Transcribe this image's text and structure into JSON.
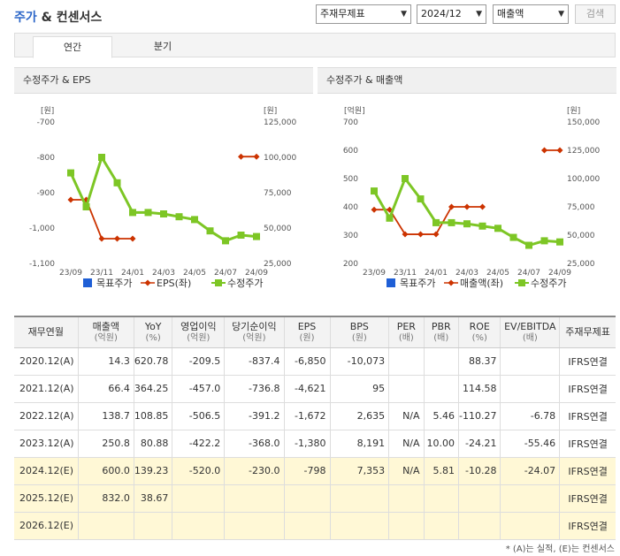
{
  "header": {
    "title_part1": "주가",
    "title_part2": "& 컨센서스",
    "selects": [
      {
        "value": "주재무제표"
      },
      {
        "value": "2024/12"
      },
      {
        "value": "매출액"
      }
    ],
    "search_label": "검색"
  },
  "tabs": [
    {
      "label": "연간",
      "active": true
    },
    {
      "label": "분기",
      "active": false
    }
  ],
  "colors": {
    "eps": "#cc3300",
    "price": "#7dc625",
    "target": "#1f5fd6"
  },
  "chart_data": [
    {
      "type": "line",
      "title": "수정주가 & EPS",
      "left_unit": "[원]",
      "right_unit": "[원]",
      "categories": [
        "23/09",
        "23/10",
        "23/11",
        "23/12",
        "24/01",
        "24/02",
        "24/03",
        "24/04",
        "24/05",
        "24/06",
        "24/07",
        "24/08",
        "24/09"
      ],
      "x_tick_labels": [
        "23/09",
        "23/11",
        "24/01",
        "24/03",
        "24/05",
        "24/07",
        "24/09"
      ],
      "left_ticks": [
        "-700",
        "-800",
        "-900",
        "-1,000",
        "-1,100"
      ],
      "right_ticks": [
        "125,000",
        "100,000",
        "75,000",
        "50,000",
        "25,000"
      ],
      "ylim_left": [
        -1100,
        -700
      ],
      "ylim_right": [
        25000,
        125000
      ],
      "series": [
        {
          "name": "EPS(좌)",
          "axis": "left",
          "color": "#cc3300",
          "values": [
            -920,
            -920,
            -1030,
            -1030,
            -1030,
            null,
            null,
            null,
            null,
            null,
            null,
            -798,
            -798
          ]
        },
        {
          "name": "수정주가",
          "axis": "right",
          "color": "#7dc625",
          "values": [
            89000,
            65000,
            100000,
            82000,
            61000,
            61000,
            60000,
            58000,
            56000,
            48000,
            41000,
            45000,
            44000
          ]
        }
      ],
      "legend": [
        "목표주가",
        "EPS(좌)",
        "수정주가"
      ]
    },
    {
      "type": "line",
      "title": "수정주가 & 매출액",
      "left_unit": "[억원]",
      "right_unit": "[원]",
      "categories": [
        "23/09",
        "23/10",
        "23/11",
        "23/12",
        "24/01",
        "24/02",
        "24/03",
        "24/04",
        "24/05",
        "24/06",
        "24/07",
        "24/08",
        "24/09"
      ],
      "x_tick_labels": [
        "23/09",
        "23/11",
        "24/01",
        "24/03",
        "24/05",
        "24/07",
        "24/09"
      ],
      "left_ticks": [
        "700",
        "600",
        "500",
        "400",
        "300",
        "200"
      ],
      "right_ticks": [
        "150,000",
        "125,000",
        "100,000",
        "75,000",
        "50,000",
        "25,000"
      ],
      "ylim_left": [
        200,
        700
      ],
      "ylim_right": [
        25000,
        150000
      ],
      "series": [
        {
          "name": "매출액(좌)",
          "axis": "left",
          "color": "#cc3300",
          "values": [
            390,
            390,
            303,
            303,
            303,
            400,
            400,
            400,
            null,
            null,
            null,
            600,
            600
          ]
        },
        {
          "name": "수정주가",
          "axis": "right",
          "color": "#7dc625",
          "values": [
            89000,
            65000,
            100000,
            82000,
            61000,
            61000,
            60000,
            58000,
            56000,
            48000,
            41000,
            45000,
            44000
          ]
        }
      ],
      "legend": [
        "목표주가",
        "매출액(좌)",
        "수정주가"
      ]
    }
  ],
  "table": {
    "headers": [
      {
        "main": "재무연월",
        "sub": ""
      },
      {
        "main": "매출액",
        "sub": "(억원)"
      },
      {
        "main": "YoY",
        "sub": "(%)"
      },
      {
        "main": "영업이익",
        "sub": "(억원)"
      },
      {
        "main": "당기순이익",
        "sub": "(억원)"
      },
      {
        "main": "EPS",
        "sub": "(원)"
      },
      {
        "main": "BPS",
        "sub": "(원)"
      },
      {
        "main": "PER",
        "sub": "(배)"
      },
      {
        "main": "PBR",
        "sub": "(배)"
      },
      {
        "main": "ROE",
        "sub": "(%)"
      },
      {
        "main": "EV/EBITDA",
        "sub": "(배)"
      },
      {
        "main": "주재무제표",
        "sub": ""
      }
    ],
    "rows": [
      {
        "est": false,
        "cells": [
          "2020.12(A)",
          "14.3",
          "620.78",
          "-209.5",
          "-837.4",
          "-6,850",
          "-10,073",
          "",
          "",
          "88.37",
          "",
          "IFRS연결"
        ]
      },
      {
        "est": false,
        "cells": [
          "2021.12(A)",
          "66.4",
          "364.25",
          "-457.0",
          "-736.8",
          "-4,621",
          "95",
          "",
          "",
          "114.58",
          "",
          "IFRS연결"
        ]
      },
      {
        "est": false,
        "cells": [
          "2022.12(A)",
          "138.7",
          "108.85",
          "-506.5",
          "-391.2",
          "-1,672",
          "2,635",
          "N/A",
          "5.46",
          "-110.27",
          "-6.78",
          "IFRS연결"
        ]
      },
      {
        "est": false,
        "cells": [
          "2023.12(A)",
          "250.8",
          "80.88",
          "-422.2",
          "-368.0",
          "-1,380",
          "8,191",
          "N/A",
          "10.00",
          "-24.21",
          "-55.46",
          "IFRS연결"
        ]
      },
      {
        "est": true,
        "cells": [
          "2024.12(E)",
          "600.0",
          "139.23",
          "-520.0",
          "-230.0",
          "-798",
          "7,353",
          "N/A",
          "5.81",
          "-10.28",
          "-24.07",
          "IFRS연결"
        ]
      },
      {
        "est": true,
        "cells": [
          "2025.12(E)",
          "832.0",
          "38.67",
          "",
          "",
          "",
          "",
          "",
          "",
          "",
          "",
          "IFRS연결"
        ]
      },
      {
        "est": true,
        "cells": [
          "2026.12(E)",
          "",
          "",
          "",
          "",
          "",
          "",
          "",
          "",
          "",
          "",
          "IFRS연결"
        ]
      }
    ]
  },
  "footnote": "* (A)는 실적, (E)는 컨센서스"
}
